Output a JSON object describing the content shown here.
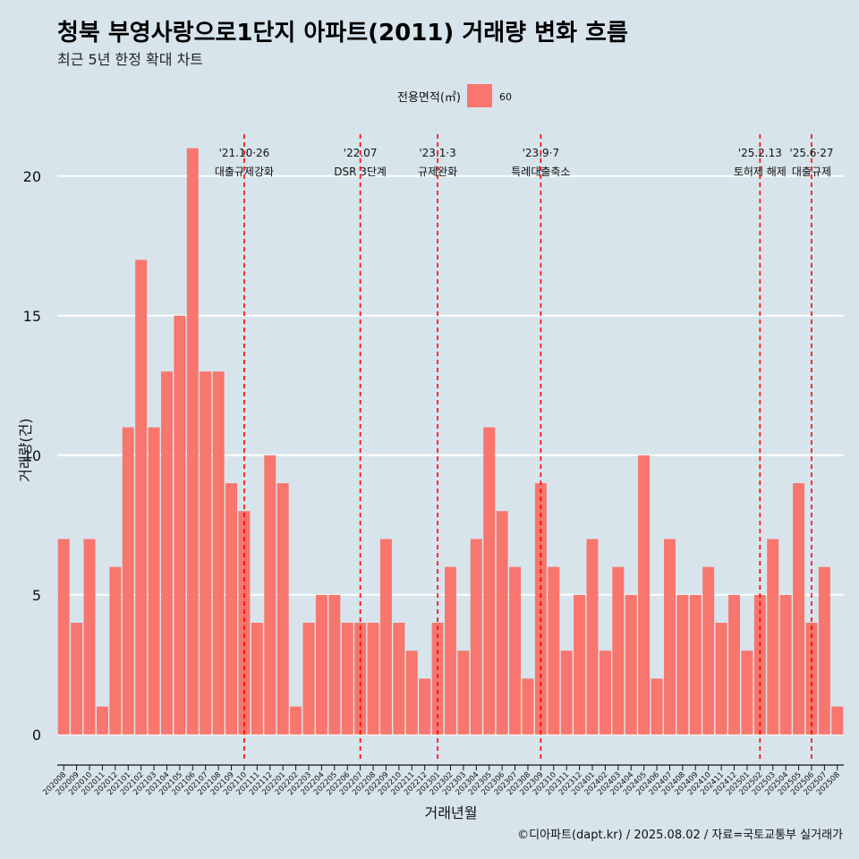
{
  "chart_data": {
    "type": "bar",
    "title": "청북 부영사랑으로1단지 아파트(2011) 거래량 변화 흐름",
    "subtitle": "최근 5년 한정 확대 차트",
    "xlabel": "거래년월",
    "ylabel": "거래량(건)",
    "caption": "©디아파트(dapt.kr) / 2025.08.02 / 자료=국토교통부 실거래가",
    "ylim": [
      -1,
      21.5
    ],
    "yticks": [
      0,
      5,
      10,
      15,
      20
    ],
    "grid": true,
    "legend": {
      "title": "전용면적(㎡)",
      "position": "top",
      "entries": [
        {
          "label": "60",
          "color": "#f8766d"
        }
      ]
    },
    "series": [
      {
        "name": "60",
        "color": "#f8766d",
        "values": [
          7,
          4,
          7,
          1,
          6,
          11,
          17,
          11,
          13,
          15,
          21,
          13,
          13,
          9,
          8,
          4,
          10,
          9,
          1,
          4,
          5,
          5,
          4,
          4,
          4,
          7,
          4,
          3,
          2,
          4,
          6,
          3,
          7,
          11,
          8,
          6,
          2,
          9,
          6,
          3,
          5,
          7,
          3,
          6,
          5,
          10,
          2,
          7,
          5,
          5,
          6,
          4,
          5,
          3,
          5,
          7,
          5,
          9,
          4,
          6,
          1
        ]
      }
    ],
    "categories": [
      "202008",
      "202009",
      "202010",
      "202011",
      "202012",
      "202101",
      "202102",
      "202103",
      "202104",
      "202105",
      "202106",
      "202107",
      "202108",
      "202109",
      "202110",
      "202111",
      "202112",
      "202201",
      "202202",
      "202203",
      "202204",
      "202205",
      "202206",
      "202207",
      "202208",
      "202209",
      "202210",
      "202211",
      "202212",
      "202301",
      "202302",
      "202303",
      "202304",
      "202305",
      "202306",
      "202307",
      "202308",
      "202309",
      "202310",
      "202311",
      "202312",
      "202401",
      "202402",
      "202403",
      "202404",
      "202405",
      "202406",
      "202407",
      "202408",
      "202409",
      "202410",
      "202411",
      "202412",
      "202501",
      "202502",
      "202503",
      "202504",
      "202505",
      "202506",
      "202507",
      "202508"
    ],
    "annotations": [
      {
        "at": "202110",
        "date": "'21.10·26",
        "label": "대출규제강화"
      },
      {
        "at": "202207",
        "date": "'22.07",
        "label": "DSR 3단계"
      },
      {
        "at": "202301",
        "date": "'23.1·3",
        "label": "규제완화"
      },
      {
        "at": "202309",
        "date": "'23.9·7",
        "label": "특례대출축소"
      },
      {
        "at": "202502",
        "date": "'25.2.13",
        "label": "토허제 해제"
      },
      {
        "at": "202506",
        "date": "'25.6·27",
        "label": "대출규제"
      }
    ],
    "colors": {
      "background": "#d7e4ec",
      "bar": "#f8766d",
      "grid": "#ffffff",
      "annotation_line": "#ff0000"
    }
  }
}
